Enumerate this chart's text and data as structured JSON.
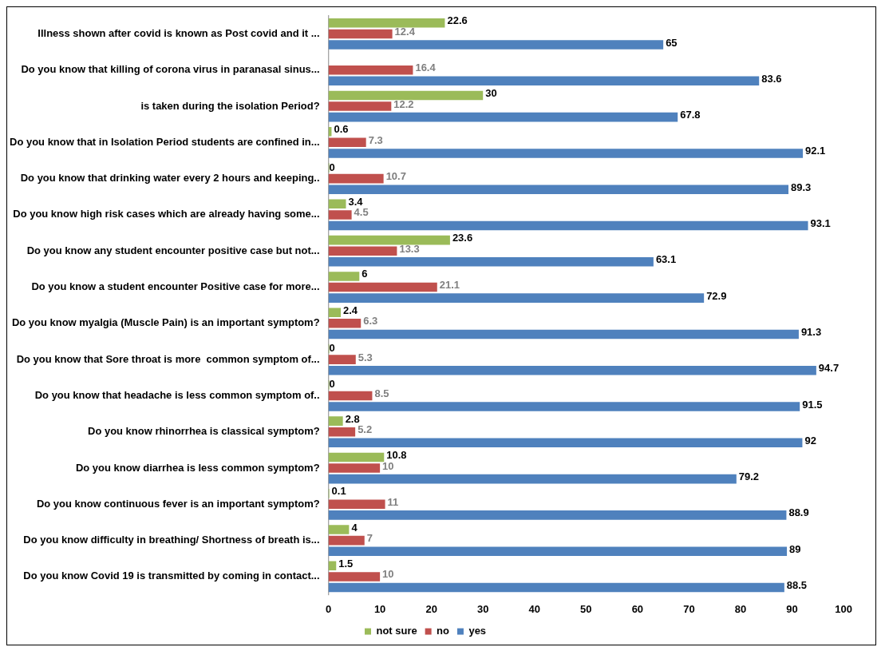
{
  "chart_data": {
    "type": "bar",
    "orientation": "horizontal",
    "categories": [
      "Illness shown after covid is known as Post covid and it ...",
      "Do you know that killing of corona virus in paranasal sinus...",
      "is taken during the isolation Period?",
      "Do you know that in Isolation Period students are confined in...",
      "Do you know that drinking water every 2 hours and keeping..",
      "Do you know high risk cases which are already having some...",
      "Do you know any student encounter positive case but not...",
      "Do you know a student encounter Positive case for more...",
      "Do you know myalgia (Muscle Pain) is an important symptom?",
      "Do you know that Sore throat is more  common symptom of...",
      "Do you know that headache is less common symptom of..",
      "Do you know rhinorrhea is classical symptom?",
      "Do you know diarrhea is less common symptom?",
      "Do you know continuous fever is an important symptom?",
      "Do you know difficulty in breathing/ Shortness of breath is...",
      "Do you know Covid 19 is transmitted by coming in contact..."
    ],
    "series": [
      {
        "name": "not sure",
        "color": "#9bbb59",
        "values": [
          22.6,
          null,
          30,
          0.6,
          0,
          3.4,
          23.6,
          6,
          2.4,
          0,
          0,
          2.8,
          10.8,
          0.1,
          4,
          1.5
        ]
      },
      {
        "name": "no",
        "color": "#c0504d",
        "values": [
          12.4,
          16.4,
          12.2,
          7.3,
          10.7,
          4.5,
          13.3,
          21.1,
          6.3,
          5.3,
          8.5,
          5.2,
          10,
          11,
          7,
          10
        ]
      },
      {
        "name": "yes",
        "color": "#4f81bd",
        "values": [
          65,
          83.6,
          67.8,
          92.1,
          89.3,
          93.1,
          63.1,
          72.9,
          91.3,
          94.7,
          91.5,
          92,
          79.2,
          88.9,
          89,
          88.5
        ]
      }
    ],
    "xlim": [
      0,
      100
    ],
    "xticks": [
      0,
      10,
      20,
      30,
      40,
      50,
      60,
      70,
      80,
      90,
      100
    ],
    "grid": false,
    "legend": "bottom",
    "data_labels": true
  }
}
